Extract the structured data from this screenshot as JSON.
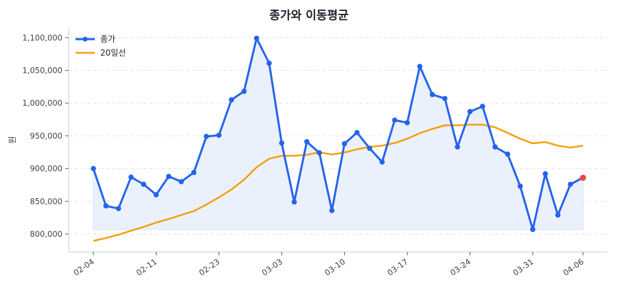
{
  "chart_data": {
    "type": "line",
    "title": "종가와 이동평균",
    "xlabel": "",
    "ylabel": "원",
    "ylim": [
      770000,
      1117000
    ],
    "yticks": [
      800000,
      850000,
      900000,
      950000,
      1000000,
      1050000,
      1100000
    ],
    "ytick_labels": [
      "800,000",
      "850,000",
      "900,000",
      "950,000",
      "1,000,000",
      "1,050,000",
      "1,100,000"
    ],
    "xtick_labels": [
      "02-04",
      "02-11",
      "02-23",
      "03-03",
      "03-10",
      "03-17",
      "03-24",
      "03-31",
      "04-06"
    ],
    "xtick_indices": [
      0,
      5,
      10,
      15,
      20,
      25,
      30,
      35,
      39
    ],
    "grid": true,
    "legend_position": "upper left",
    "legend": [
      "종가",
      "20일선"
    ],
    "series": [
      {
        "name": "종가",
        "color": "#2563eb",
        "marker": "circle",
        "fill": true,
        "last_point_color": "#ef4444",
        "values": [
          900000,
          843000,
          839000,
          887000,
          876000,
          860000,
          888000,
          880000,
          894000,
          949000,
          951000,
          1005000,
          1018000,
          1099000,
          1061000,
          939000,
          849000,
          941000,
          924000,
          836000,
          938000,
          955000,
          931000,
          910000,
          974000,
          970000,
          1056000,
          1013000,
          1007000,
          933000,
          987000,
          995000,
          933000,
          922000,
          873000,
          807000,
          892000,
          829000,
          876000,
          886000
        ]
      },
      {
        "name": "20일선",
        "color": "#f59e0b",
        "marker": "none",
        "values": [
          789500,
          794000,
          799000,
          805000,
          811000,
          817500,
          823000,
          829000,
          835000,
          845000,
          856000,
          868000,
          883000,
          902000,
          915000,
          919500,
          919500,
          921000,
          925000,
          921500,
          924500,
          929500,
          933000,
          935000,
          939000,
          945500,
          954000,
          960500,
          966000,
          966000,
          967000,
          967000,
          963000,
          954500,
          945500,
          938500,
          940500,
          935000,
          932000,
          935000
        ]
      }
    ]
  }
}
